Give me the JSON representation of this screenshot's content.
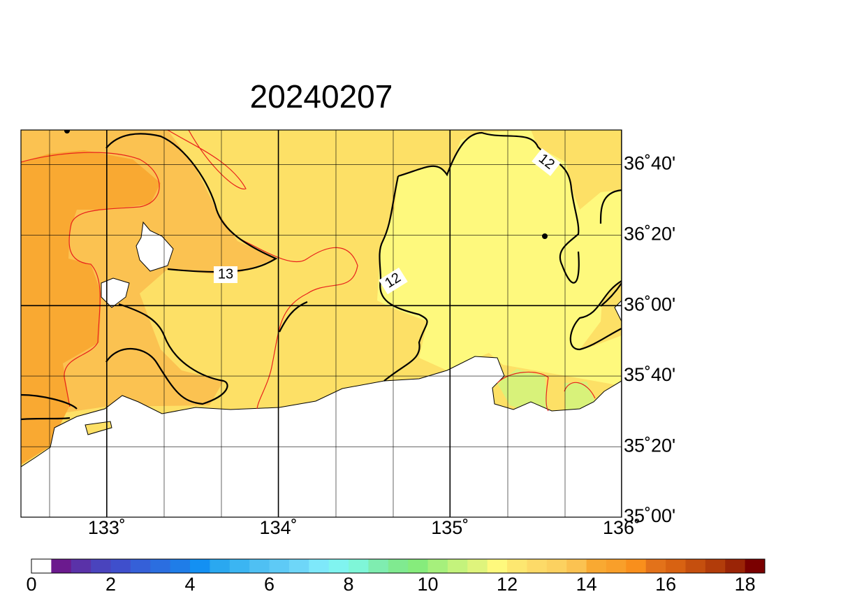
{
  "title": "20240207",
  "map": {
    "lonlim": [
      132.5,
      136
    ],
    "latlim": [
      35,
      36.83
    ],
    "lon_ticks": [
      {
        "value": 133,
        "label": "133˚"
      },
      {
        "value": 134,
        "label": "134˚"
      },
      {
        "value": 135,
        "label": "135˚"
      },
      {
        "value": 136,
        "label": "136˚"
      }
    ],
    "lat_ticks": [
      {
        "value": 35,
        "label": "35˚00'"
      },
      {
        "value": 35.333,
        "label": "35˚20'"
      },
      {
        "value": 35.667,
        "label": "35˚40'"
      },
      {
        "value": 36,
        "label": "36˚00'"
      },
      {
        "value": 36.333,
        "label": "36˚20'"
      },
      {
        "value": 36.667,
        "label": "36˚40'"
      }
    ],
    "contour_labels": [
      "13",
      "12",
      "12"
    ]
  },
  "colorbar": {
    "lim": [
      0,
      18.5
    ],
    "ticks": [
      0,
      2,
      4,
      6,
      8,
      10,
      12,
      14,
      16,
      18
    ],
    "colors": [
      "#ffffff",
      "#6b1a8e",
      "#5a32a8",
      "#4a44bd",
      "#3f4fcc",
      "#3560d8",
      "#2b6ee0",
      "#1f7de8",
      "#1390f3",
      "#2aa8f0",
      "#3bb5f2",
      "#4fc0f3",
      "#5ecaf6",
      "#6ed6f8",
      "#7ee8fa",
      "#80f4f0",
      "#7ff6d8",
      "#7fedb0",
      "#80ea90",
      "#86ec7c",
      "#a6f07c",
      "#c4f37c",
      "#dff47c",
      "#fef97d",
      "#fde770",
      "#fdda68",
      "#fcd160",
      "#fbc251",
      "#f9a932",
      "#f99f2a",
      "#f98f1c",
      "#e3721a",
      "#d86212",
      "#c54f0e",
      "#b23c0a",
      "#9a2406",
      "#7a0000"
    ]
  }
}
